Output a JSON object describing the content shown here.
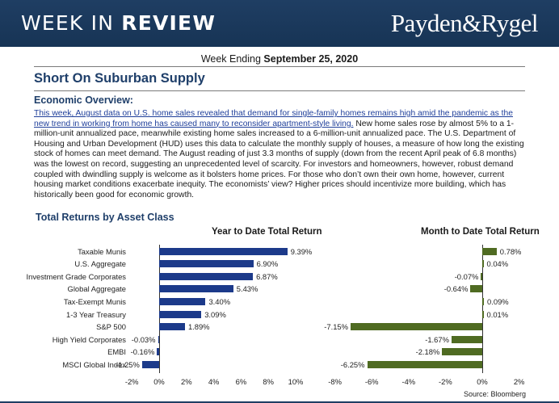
{
  "header": {
    "title_light": "WEEK IN ",
    "title_bold": "REVIEW",
    "logo": "Payden&Rygel",
    "bg_color": "#1f3e63"
  },
  "week": {
    "prefix": "Week Ending ",
    "date": "September 25, 2020"
  },
  "page_title": "Short On Suburban Supply",
  "economic_overview": {
    "heading": "Economic Overview:",
    "link_text": "This week, August data on U.S. home sales revealed that demand for single-family homes remains high amid the pandemic as the new trend in working from home has caused many to reconsider apartment-style living.",
    "body": " New home sales rose by almost 5% to a 1-million-unit annualized pace, meanwhile existing home sales increased to a 6-million-unit annualized pace. The U.S. Department of Housing and Urban Development (HUD) uses this data to calculate the monthly supply of houses, a measure of how long the existing stock of homes can meet demand. The August reading of just 3.3 months of supply (down from the recent April peak of 6.8 months) was the lowest on record, suggesting an unprecedented level of scarcity. For investors and homeowners, however, robust demand coupled with dwindling supply is welcome as it bolsters home prices. For those who don’t own their own home, however, current housing market conditions exacerbate inequity. The economists’ view? Higher prices should incentivize more building, which has historically been good for economic growth."
  },
  "returns_section": {
    "title": "Total Returns by Asset Class",
    "source": "Source: Bloomberg"
  },
  "chart_data": [
    {
      "type": "bar",
      "orientation": "horizontal",
      "title": "Year to Date Total Return",
      "categories": [
        "Taxable Munis",
        "U.S. Aggregate",
        "Investment Grade Corporates",
        "Global Aggregate",
        "Tax-Exempt Munis",
        "1-3 Year Treasury",
        "S&P 500",
        "High Yield Corporates",
        "EMBI",
        "MSCI Global Index"
      ],
      "values": [
        9.39,
        6.9,
        6.87,
        5.43,
        3.4,
        3.09,
        1.89,
        -0.03,
        -0.16,
        -1.25
      ],
      "value_labels": [
        "9.39%",
        "6.90%",
        "6.87%",
        "5.43%",
        "3.40%",
        "3.09%",
        "1.89%",
        "-0.03%",
        "-0.16%",
        "-1.25%"
      ],
      "xlim": [
        -2,
        10
      ],
      "ticks": [
        -2,
        0,
        2,
        4,
        6,
        8,
        10
      ],
      "tick_labels": [
        "-2%",
        "0%",
        "2%",
        "4%",
        "6%",
        "8%",
        "10%"
      ],
      "color": "#1c3a8a",
      "grid": false
    },
    {
      "type": "bar",
      "orientation": "horizontal",
      "title": "Month to Date Total Return",
      "categories": [
        "Taxable Munis",
        "U.S. Aggregate",
        "Investment Grade Corporates",
        "Global Aggregate",
        "Tax-Exempt Munis",
        "1-3 Year Treasury",
        "S&P 500",
        "High Yield Corporates",
        "EMBI",
        "MSCI Global Index"
      ],
      "values": [
        0.78,
        0.04,
        -0.07,
        -0.64,
        0.09,
        0.01,
        -7.15,
        -1.67,
        -2.18,
        -6.25
      ],
      "value_labels": [
        "0.78%",
        "0.04%",
        "-0.07%",
        "-0.64%",
        "0.09%",
        "0.01%",
        "-7.15%",
        "-1.67%",
        "-2.18%",
        "-6.25%"
      ],
      "xlim": [
        -8,
        2
      ],
      "ticks": [
        -8,
        -6,
        -4,
        -2,
        0,
        2
      ],
      "tick_labels": [
        "-8%",
        "-6%",
        "-4%",
        "-2%",
        "0%",
        "2%"
      ],
      "color": "#4f6b22",
      "grid": false
    }
  ]
}
